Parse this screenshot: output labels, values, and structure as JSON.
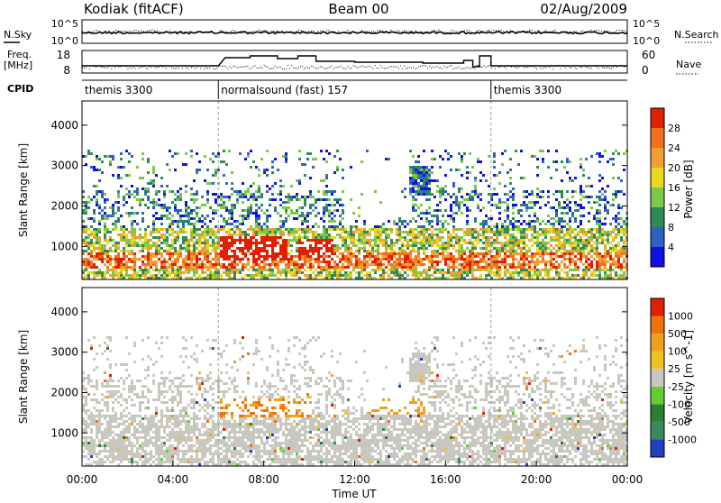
{
  "header": {
    "station": "Kodiak (fitACF)",
    "beam": "Beam 00",
    "date": "02/Aug/2009"
  },
  "side_labels": {
    "nsky": "N.Sky",
    "nsearch": "N.Search",
    "freq_line1": "Freq.",
    "freq_line2": "[MHz]",
    "nave": "Nave",
    "cpid": "CPID"
  },
  "noise_axis": {
    "top": "10^5",
    "bottom": "10^0"
  },
  "freq_axis": {
    "ticks": [
      "18",
      "8"
    ]
  },
  "nave_axis": {
    "ticks": [
      "60",
      "0"
    ]
  },
  "cpid_segments": [
    {
      "label": "themis 3300",
      "start_h": 0,
      "end_h": 6
    },
    {
      "label": "normalsound (fast) 157",
      "start_h": 6,
      "end_h": 18
    },
    {
      "label": "themis 3300",
      "start_h": 18,
      "end_h": 24
    }
  ],
  "chart_data": [
    {
      "type": "heatmap",
      "name": "power",
      "ylabel": "Slant Range [km]",
      "yticks": [
        1000,
        2000,
        3000,
        4000
      ],
      "ylim": [
        180,
        4600
      ],
      "colorbar_label": "Power [dB]",
      "colorbar_ticks": [
        "4",
        "8",
        "12",
        "16",
        "20",
        "24",
        "28"
      ],
      "colorbar_colors": [
        "#1010e0",
        "#3060c0",
        "#2e8b57",
        "#7cc84a",
        "#e8d820",
        "#f0a030",
        "#f07020",
        "#e02000"
      ]
    },
    {
      "type": "heatmap",
      "name": "velocity",
      "ylabel": "Slant Range [km]",
      "yticks": [
        1000,
        2000,
        3000,
        4000
      ],
      "ylim": [
        180,
        4600
      ],
      "colorbar_label": "Velocity [m s^-1]",
      "colorbar_ticks": [
        "1000",
        "500",
        "100",
        "25",
        "-25",
        "-100",
        "-500",
        "-1000"
      ],
      "colorbar_colors": [
        "#2040c0",
        "#3a8a60",
        "#2e7d32",
        "#66cc33",
        "#c8c8c0",
        "#f0c020",
        "#f0a020",
        "#f07010",
        "#e02000"
      ]
    }
  ],
  "time_axis": {
    "label": "Time UT",
    "ticks": [
      "00:00",
      "04:00",
      "08:00",
      "12:00",
      "16:00",
      "20:00",
      "00:00"
    ],
    "xlim_hours": [
      0,
      24
    ]
  }
}
